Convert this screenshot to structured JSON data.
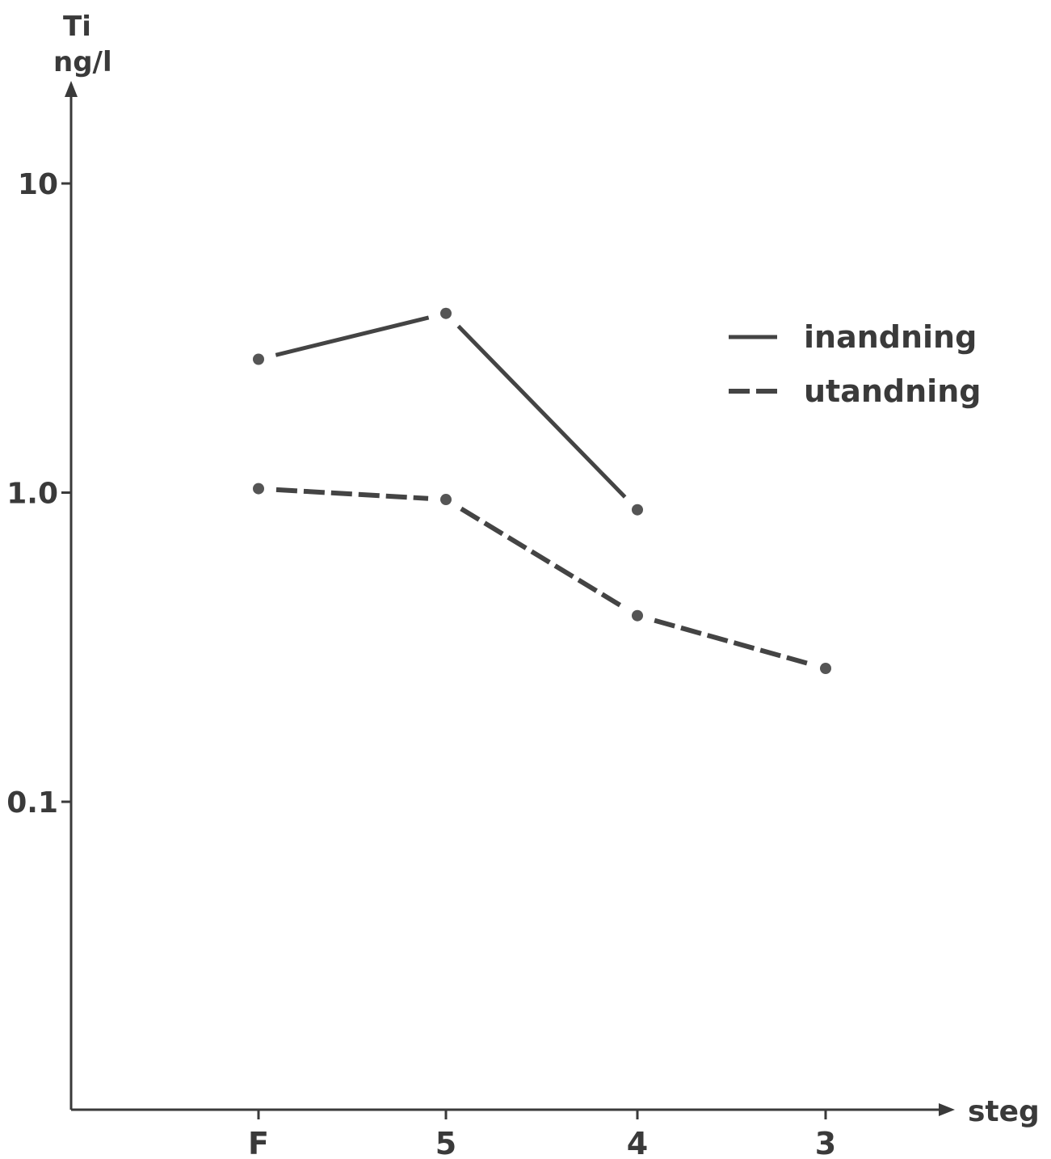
{
  "chart_data": {
    "type": "line",
    "y_label_line1": "Ti",
    "y_label_line2": "ng/l",
    "xlabel": "steg",
    "yscale": "log",
    "ylim": [
      0.01,
      20
    ],
    "categories": [
      "F",
      "5",
      "4",
      "3"
    ],
    "yticks": [
      {
        "value": 10,
        "label": "10"
      },
      {
        "value": 1,
        "label": "1.0"
      },
      {
        "value": 0.1,
        "label": "0.1"
      }
    ],
    "series": [
      {
        "name": "inandning",
        "style": "solid",
        "values": [
          2.7,
          3.8,
          0.88,
          null
        ]
      },
      {
        "name": "utandning",
        "style": "dashed",
        "values": [
          1.03,
          0.95,
          0.4,
          0.27
        ]
      }
    ],
    "legend_position": "right",
    "grid": false
  }
}
